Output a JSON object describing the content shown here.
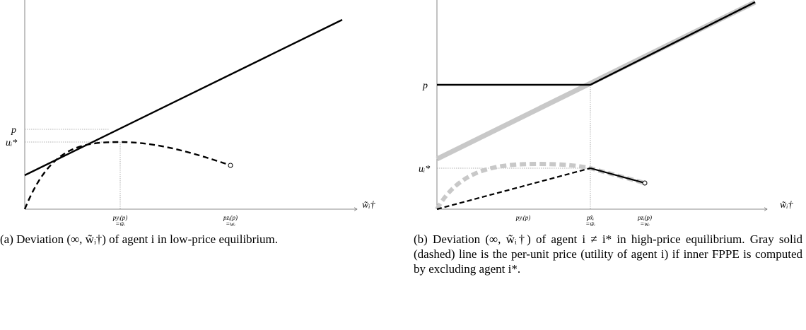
{
  "panels": [
    {
      "y_labels": [
        "p",
        "uᵢ*"
      ],
      "x_axis_label": "w̃ᵢ†",
      "x_labels": [
        [
          "pyᵢ(p)",
          "=w̃ᵢ"
        ],
        [
          "pzᵢ(p)",
          "=wᵢ"
        ]
      ],
      "caption": "(a) Deviation (∞, w̃ᵢ†) of agent i in low-price equilibrium."
    },
    {
      "y_labels": [
        "p",
        "uᵢ*"
      ],
      "x_axis_label": "w̃ᵢ†",
      "x_labels": [
        [
          "pyᵢ(p)"
        ],
        [
          "px̂ᵢ",
          "=w̃ᵢ"
        ],
        [
          "pzᵢ(p)",
          "=wᵢ"
        ]
      ],
      "caption": "(b) Deviation (∞, w̃ᵢ†) of agent i ≠ i* in high-price equilibrium. Gray solid (dashed) line is the per-unit price (utility of agent i) if inner FPPE is computed by excluding agent i*."
    }
  ]
}
